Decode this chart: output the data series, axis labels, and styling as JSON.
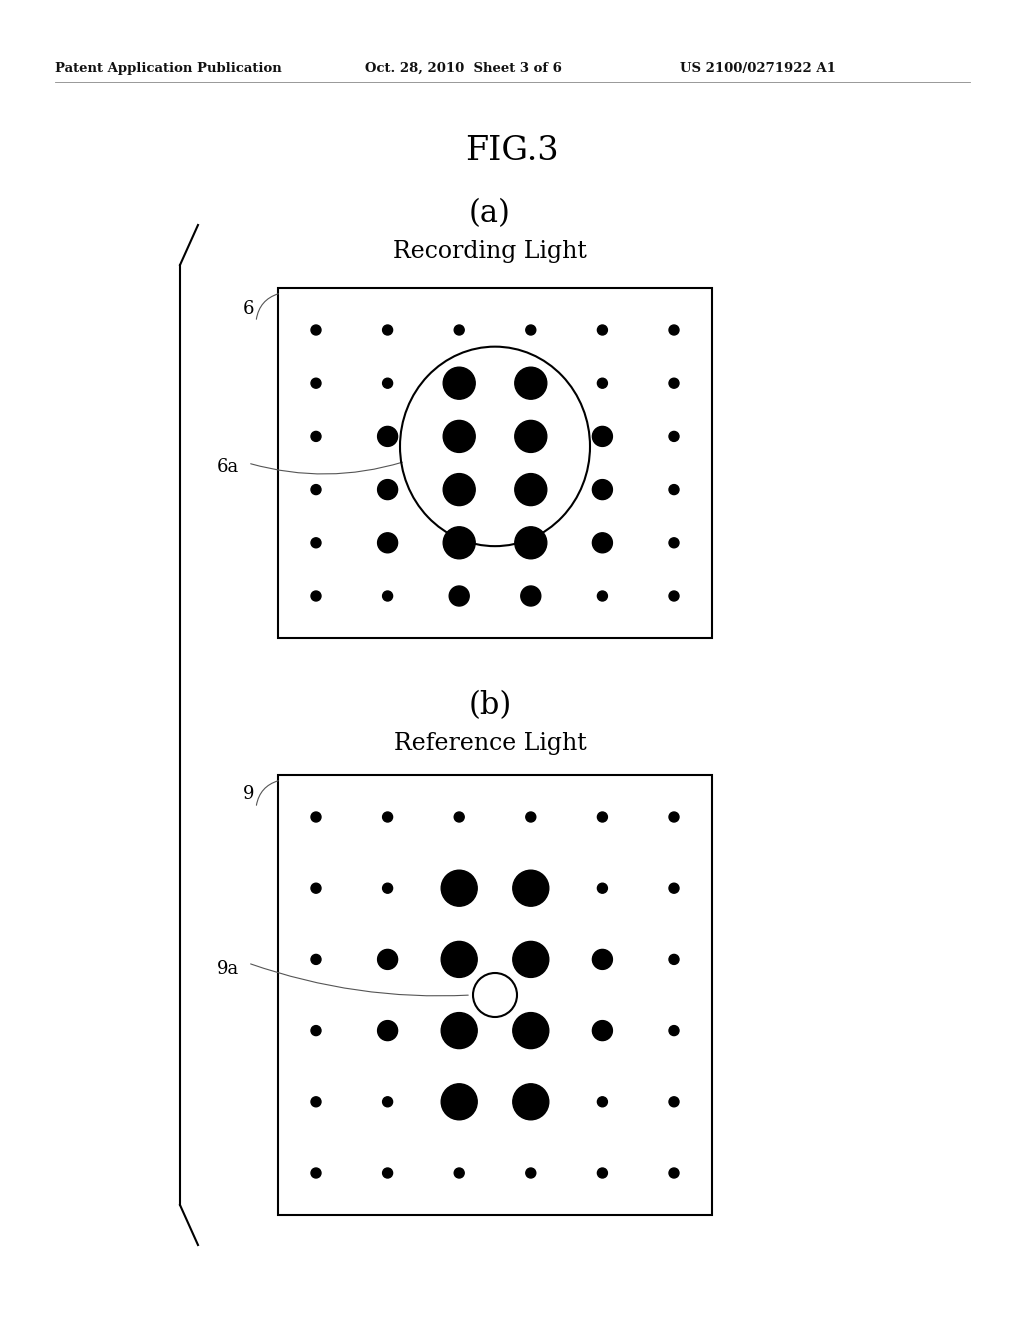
{
  "fig_title": "FIG.3",
  "header_left": "Patent Application Publication",
  "header_mid": "Oct. 28, 2010  Sheet 3 of 6",
  "header_right": "US 2100/0271922 A1",
  "panel_a_label": "(a)",
  "panel_a_title": "Recording Light",
  "panel_b_label": "(b)",
  "panel_b_title": "Reference Light",
  "label_6": "6",
  "label_6a": "6a",
  "label_9": "9",
  "label_9a": "9a",
  "bg_color": "#ffffff",
  "dot_color": "#000000",
  "box_color": "#000000",
  "bracket_color": "#000000",
  "header_line_color": "#888888"
}
